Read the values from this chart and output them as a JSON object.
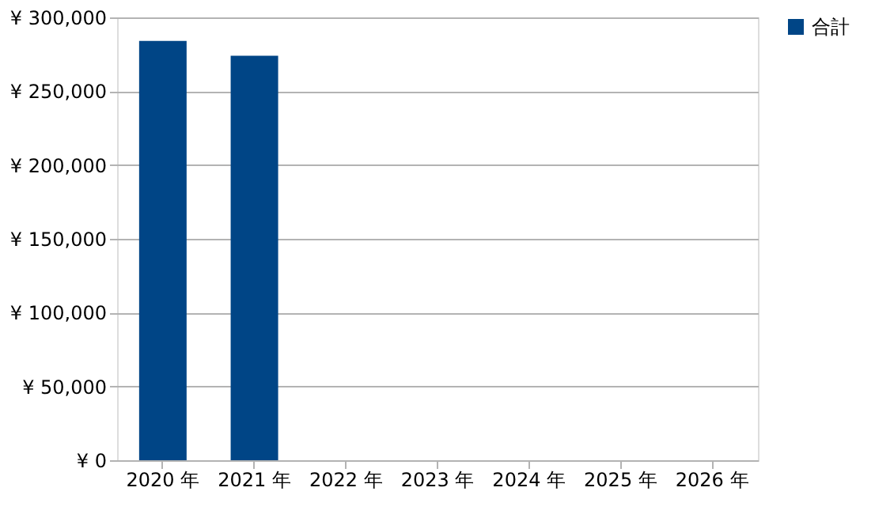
{
  "chart_data": {
    "type": "bar",
    "categories": [
      "2020 年",
      "2021 年",
      "2022 年",
      "2023 年",
      "2024 年",
      "2025 年",
      "2026 年"
    ],
    "series": [
      {
        "name": "合計",
        "color": "#004586",
        "values": [
          284000,
          274000,
          null,
          null,
          null,
          null,
          null
        ]
      }
    ],
    "ylim": [
      0,
      300000
    ],
    "yticks": [
      {
        "value": 0,
        "label": "¥ 0"
      },
      {
        "value": 50000,
        "label": "¥ 50,000"
      },
      {
        "value": 100000,
        "label": "¥ 100,000"
      },
      {
        "value": 150000,
        "label": "¥ 150,000"
      },
      {
        "value": 200000,
        "label": "¥ 200,000"
      },
      {
        "value": 250000,
        "label": "¥ 250,000"
      },
      {
        "value": 300000,
        "label": "¥ 300,000"
      }
    ],
    "grid": "y",
    "legend": "right"
  }
}
